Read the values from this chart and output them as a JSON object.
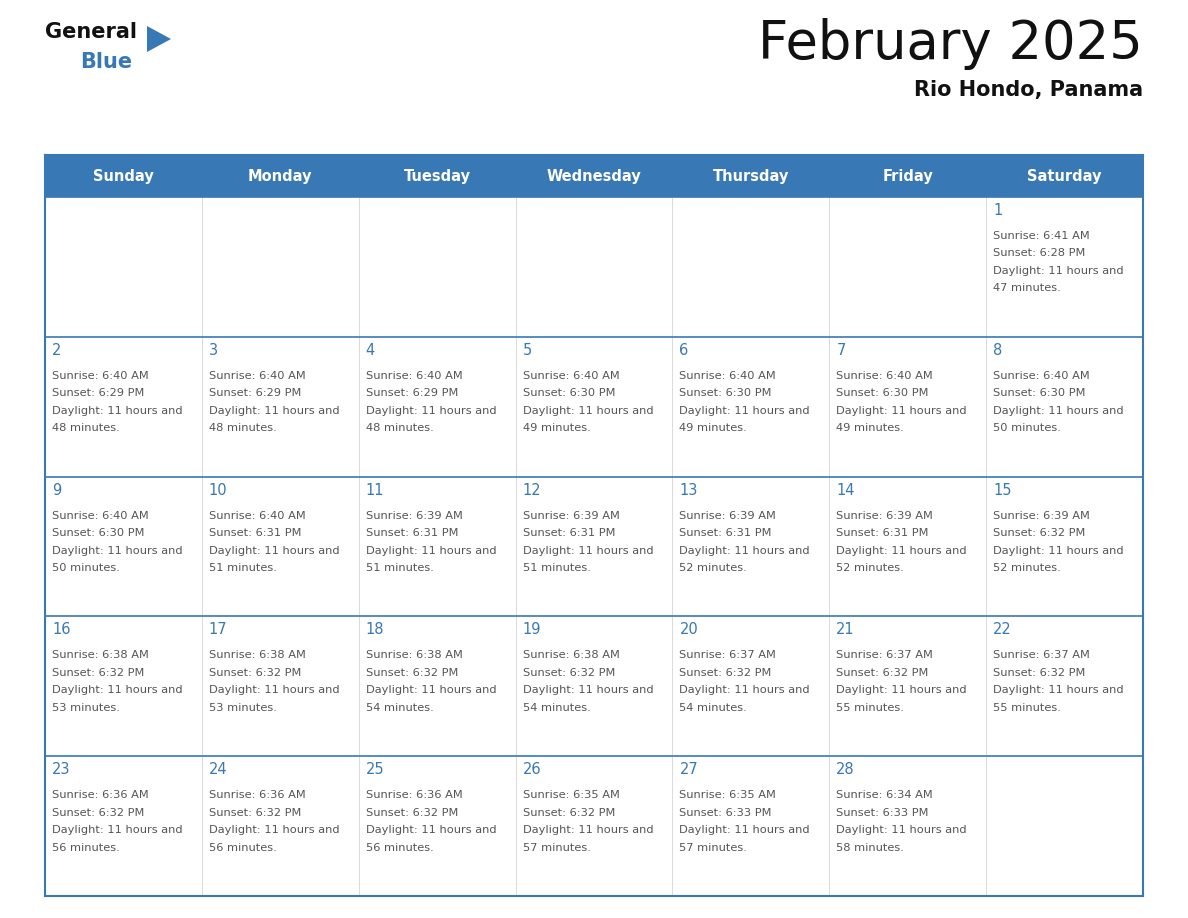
{
  "title": "February 2025",
  "subtitle": "Rio Hondo, Panama",
  "header_color": "#3878b4",
  "header_text_color": "#ffffff",
  "cell_bg_color": "#ffffff",
  "border_color": "#3878b4",
  "title_color": "#111111",
  "subtitle_color": "#111111",
  "day_number_color": "#3878b4",
  "info_text_color": "#555555",
  "days_of_week": [
    "Sunday",
    "Monday",
    "Tuesday",
    "Wednesday",
    "Thursday",
    "Friday",
    "Saturday"
  ],
  "weeks": [
    [
      {
        "day": null,
        "sunrise": null,
        "sunset": null,
        "daylight": null
      },
      {
        "day": null,
        "sunrise": null,
        "sunset": null,
        "daylight": null
      },
      {
        "day": null,
        "sunrise": null,
        "sunset": null,
        "daylight": null
      },
      {
        "day": null,
        "sunrise": null,
        "sunset": null,
        "daylight": null
      },
      {
        "day": null,
        "sunrise": null,
        "sunset": null,
        "daylight": null
      },
      {
        "day": null,
        "sunrise": null,
        "sunset": null,
        "daylight": null
      },
      {
        "day": 1,
        "sunrise": "6:41 AM",
        "sunset": "6:28 PM",
        "daylight": "11 hours and 47 minutes."
      }
    ],
    [
      {
        "day": 2,
        "sunrise": "6:40 AM",
        "sunset": "6:29 PM",
        "daylight": "11 hours and 48 minutes."
      },
      {
        "day": 3,
        "sunrise": "6:40 AM",
        "sunset": "6:29 PM",
        "daylight": "11 hours and 48 minutes."
      },
      {
        "day": 4,
        "sunrise": "6:40 AM",
        "sunset": "6:29 PM",
        "daylight": "11 hours and 48 minutes."
      },
      {
        "day": 5,
        "sunrise": "6:40 AM",
        "sunset": "6:30 PM",
        "daylight": "11 hours and 49 minutes."
      },
      {
        "day": 6,
        "sunrise": "6:40 AM",
        "sunset": "6:30 PM",
        "daylight": "11 hours and 49 minutes."
      },
      {
        "day": 7,
        "sunrise": "6:40 AM",
        "sunset": "6:30 PM",
        "daylight": "11 hours and 49 minutes."
      },
      {
        "day": 8,
        "sunrise": "6:40 AM",
        "sunset": "6:30 PM",
        "daylight": "11 hours and 50 minutes."
      }
    ],
    [
      {
        "day": 9,
        "sunrise": "6:40 AM",
        "sunset": "6:30 PM",
        "daylight": "11 hours and 50 minutes."
      },
      {
        "day": 10,
        "sunrise": "6:40 AM",
        "sunset": "6:31 PM",
        "daylight": "11 hours and 51 minutes."
      },
      {
        "day": 11,
        "sunrise": "6:39 AM",
        "sunset": "6:31 PM",
        "daylight": "11 hours and 51 minutes."
      },
      {
        "day": 12,
        "sunrise": "6:39 AM",
        "sunset": "6:31 PM",
        "daylight": "11 hours and 51 minutes."
      },
      {
        "day": 13,
        "sunrise": "6:39 AM",
        "sunset": "6:31 PM",
        "daylight": "11 hours and 52 minutes."
      },
      {
        "day": 14,
        "sunrise": "6:39 AM",
        "sunset": "6:31 PM",
        "daylight": "11 hours and 52 minutes."
      },
      {
        "day": 15,
        "sunrise": "6:39 AM",
        "sunset": "6:32 PM",
        "daylight": "11 hours and 52 minutes."
      }
    ],
    [
      {
        "day": 16,
        "sunrise": "6:38 AM",
        "sunset": "6:32 PM",
        "daylight": "11 hours and 53 minutes."
      },
      {
        "day": 17,
        "sunrise": "6:38 AM",
        "sunset": "6:32 PM",
        "daylight": "11 hours and 53 minutes."
      },
      {
        "day": 18,
        "sunrise": "6:38 AM",
        "sunset": "6:32 PM",
        "daylight": "11 hours and 54 minutes."
      },
      {
        "day": 19,
        "sunrise": "6:38 AM",
        "sunset": "6:32 PM",
        "daylight": "11 hours and 54 minutes."
      },
      {
        "day": 20,
        "sunrise": "6:37 AM",
        "sunset": "6:32 PM",
        "daylight": "11 hours and 54 minutes."
      },
      {
        "day": 21,
        "sunrise": "6:37 AM",
        "sunset": "6:32 PM",
        "daylight": "11 hours and 55 minutes."
      },
      {
        "day": 22,
        "sunrise": "6:37 AM",
        "sunset": "6:32 PM",
        "daylight": "11 hours and 55 minutes."
      }
    ],
    [
      {
        "day": 23,
        "sunrise": "6:36 AM",
        "sunset": "6:32 PM",
        "daylight": "11 hours and 56 minutes."
      },
      {
        "day": 24,
        "sunrise": "6:36 AM",
        "sunset": "6:32 PM",
        "daylight": "11 hours and 56 minutes."
      },
      {
        "day": 25,
        "sunrise": "6:36 AM",
        "sunset": "6:32 PM",
        "daylight": "11 hours and 56 minutes."
      },
      {
        "day": 26,
        "sunrise": "6:35 AM",
        "sunset": "6:32 PM",
        "daylight": "11 hours and 57 minutes."
      },
      {
        "day": 27,
        "sunrise": "6:35 AM",
        "sunset": "6:33 PM",
        "daylight": "11 hours and 57 minutes."
      },
      {
        "day": 28,
        "sunrise": "6:34 AM",
        "sunset": "6:33 PM",
        "daylight": "11 hours and 58 minutes."
      },
      {
        "day": null,
        "sunrise": null,
        "sunset": null,
        "daylight": null
      }
    ]
  ]
}
